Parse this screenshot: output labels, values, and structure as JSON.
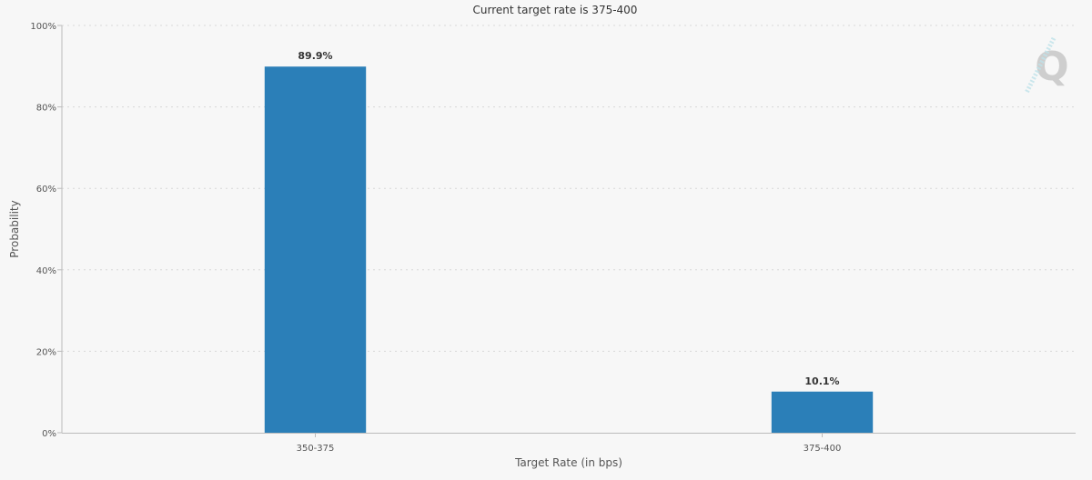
{
  "chart_data": {
    "type": "bar",
    "title": "Current target rate is 375-400",
    "xlabel": "Target Rate (in bps)",
    "ylabel": "Probability",
    "categories": [
      "350-375",
      "375-400"
    ],
    "values": [
      89.9,
      10.1
    ],
    "data_labels": [
      "89.9%",
      "10.1%"
    ],
    "ylim": [
      0,
      100
    ],
    "yticks": [
      "0%",
      "20%",
      "40%",
      "60%",
      "80%",
      "100%"
    ],
    "grid": true,
    "bar_color": "#2b7fb8",
    "watermark": "Q"
  }
}
